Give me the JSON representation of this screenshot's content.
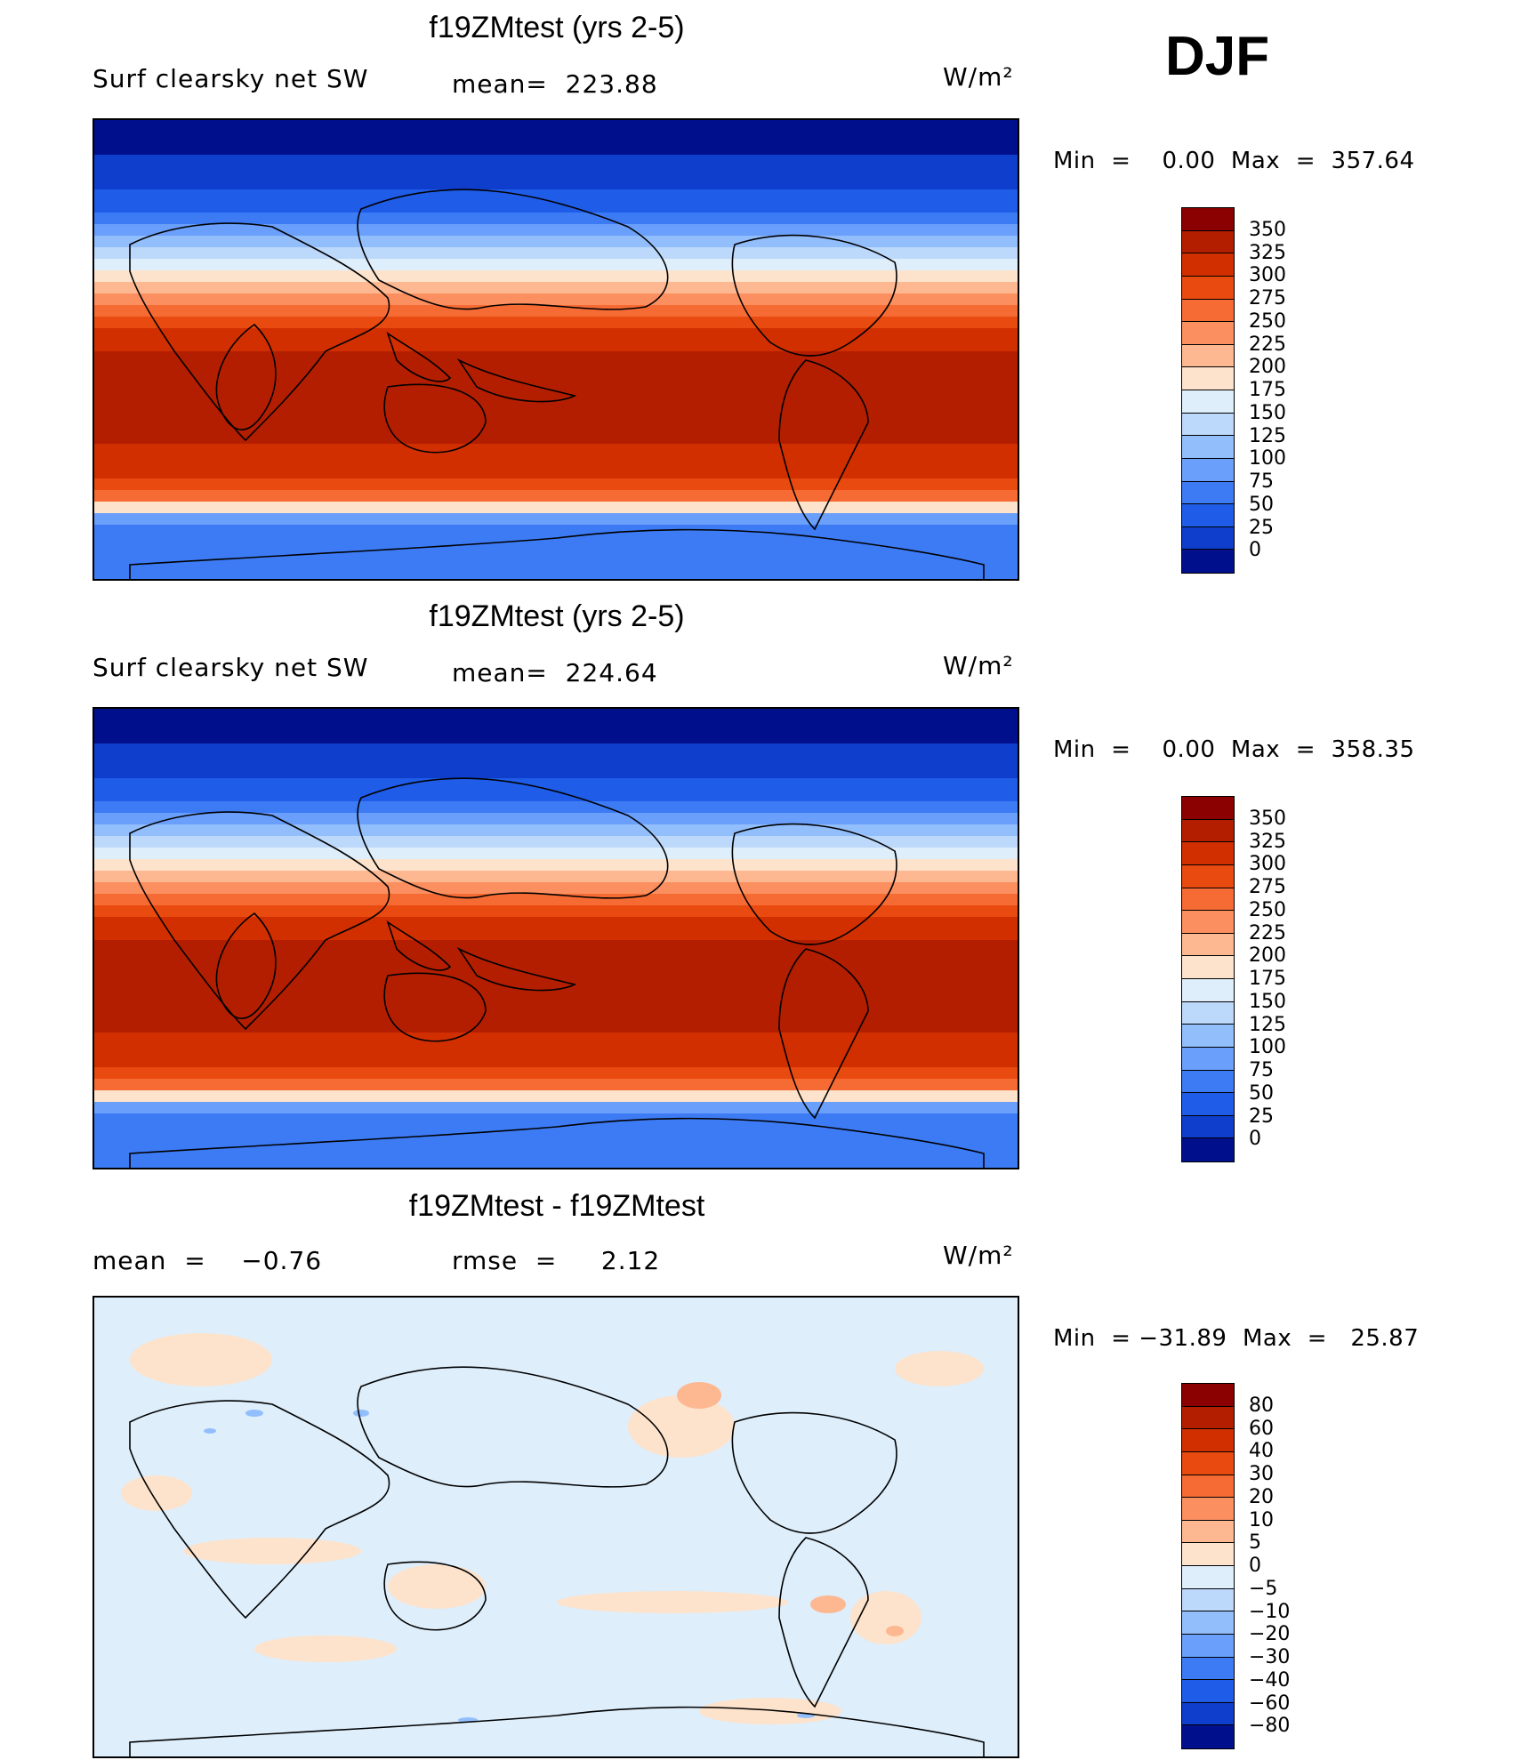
{
  "season": "DJF",
  "units": "W/m²",
  "panels": [
    {
      "title": "f19ZMtest (yrs 2-5)",
      "left_text": "Surf clearsky net SW",
      "center_text": "mean=  223.88",
      "units": "W/m²",
      "minmax": "Min  =    0.00  Max  =  357.64",
      "colorbar_labels": [
        "350",
        "325",
        "300",
        "275",
        "250",
        "225",
        "200",
        "175",
        "150",
        "125",
        "100",
        "75",
        "50",
        "25",
        "0"
      ],
      "colorbar_colors": [
        "#8b0000",
        "#b41e00",
        "#d12f00",
        "#e84a10",
        "#f66b34",
        "#fb8f60",
        "#fdb892",
        "#fde3cc",
        "#deeefb",
        "#bcd8fb",
        "#93befc",
        "#6a9ffb",
        "#3d7bf5",
        "#1f5ce8",
        "#0f3dcc",
        "#00108c"
      ]
    },
    {
      "title": "f19ZMtest (yrs 2-5)",
      "left_text": "Surf clearsky net SW",
      "center_text": "mean=  224.64",
      "units": "W/m²",
      "minmax": "Min  =    0.00  Max  =  358.35",
      "colorbar_labels": [
        "350",
        "325",
        "300",
        "275",
        "250",
        "225",
        "200",
        "175",
        "150",
        "125",
        "100",
        "75",
        "50",
        "25",
        "0"
      ],
      "colorbar_colors": [
        "#8b0000",
        "#b41e00",
        "#d12f00",
        "#e84a10",
        "#f66b34",
        "#fb8f60",
        "#fdb892",
        "#fde3cc",
        "#deeefb",
        "#bcd8fb",
        "#93befc",
        "#6a9ffb",
        "#3d7bf5",
        "#1f5ce8",
        "#0f3dcc",
        "#00108c"
      ]
    },
    {
      "title": "f19ZMtest - f19ZMtest",
      "left_text": "mean  =    −0.76",
      "center_text": "rmse  =     2.12",
      "units": "W/m²",
      "minmax": "Min  = −31.89  Max  =   25.87",
      "colorbar_labels": [
        "80",
        "60",
        "40",
        "30",
        "20",
        "10",
        "5",
        "0",
        "−5",
        "−10",
        "−20",
        "−30",
        "−40",
        "−60",
        "−80"
      ],
      "colorbar_colors": [
        "#8b0000",
        "#b41e00",
        "#d12f00",
        "#e84a10",
        "#f66b34",
        "#fb8f60",
        "#fdb892",
        "#fde3cc",
        "#deeefb",
        "#bcd8fb",
        "#93befc",
        "#6a9ffb",
        "#3d7bf5",
        "#1f5ce8",
        "#0f3dcc",
        "#00108c"
      ]
    }
  ]
}
